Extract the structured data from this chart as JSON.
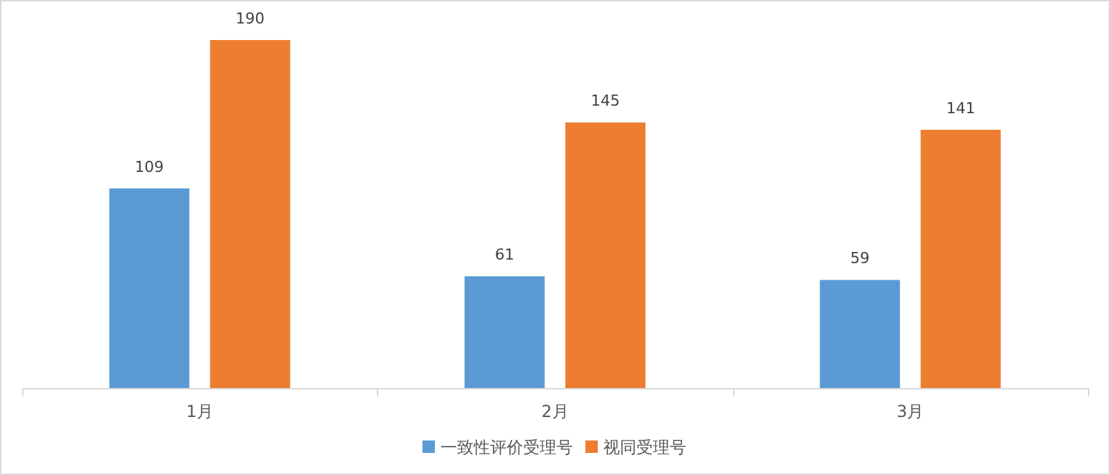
{
  "chart_data": {
    "type": "bar",
    "categories": [
      "1月",
      "2月",
      "3月"
    ],
    "series": [
      {
        "name": "一致性评价受理号",
        "color": "#5b9bd5",
        "values": [
          109,
          61,
          59
        ]
      },
      {
        "name": "视同受理号",
        "color": "#ed7d31",
        "values": [
          190,
          145,
          141
        ]
      }
    ],
    "data_labels": true,
    "legend": "bottom"
  }
}
